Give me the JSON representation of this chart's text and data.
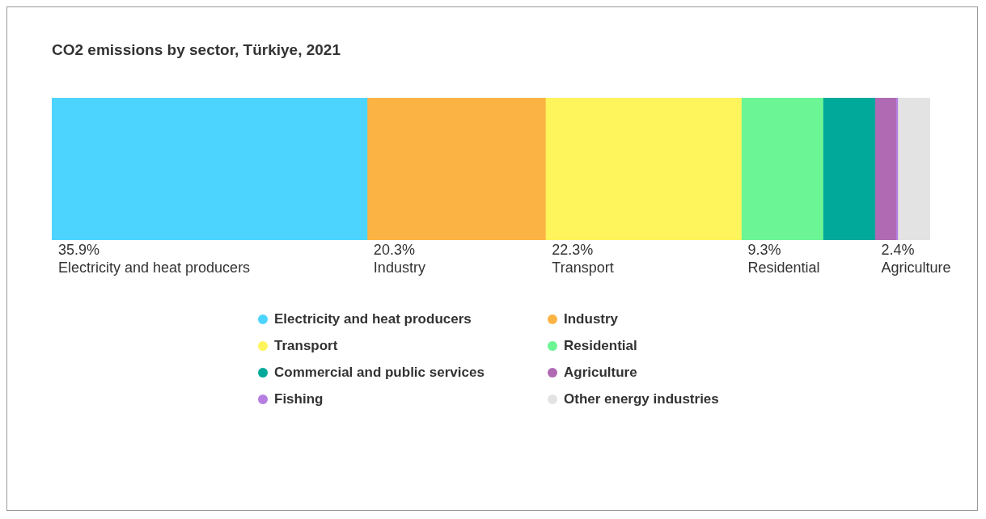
{
  "chart_data": {
    "type": "bar",
    "orientation": "horizontal",
    "stacked": true,
    "title": "CO2 emissions by sector, Türkiye, 2021",
    "categories": [
      null
    ],
    "xlim": [
      0,
      100
    ],
    "tick_labels": false,
    "legend": "bottom",
    "series": [
      {
        "name": "Electricity and heat producers",
        "color": "#4dd4fe",
        "values": [
          35.9
        ],
        "value_labels": [
          "35.9%"
        ]
      },
      {
        "name": "Industry",
        "color": "#fbb444",
        "values": [
          20.3
        ],
        "value_labels": [
          "20.3%"
        ]
      },
      {
        "name": "Transport",
        "color": "#fef45c",
        "values": [
          22.3
        ],
        "value_labels": [
          "22.3%"
        ]
      },
      {
        "name": "Residential",
        "color": "#6bf594",
        "values": [
          9.3
        ],
        "value_labels": [
          "9.3%"
        ]
      },
      {
        "name": "Commercial and public services",
        "color": "#00a99a",
        "values": [
          5.9
        ],
        "value_labels": [
          null
        ]
      },
      {
        "name": "Agriculture",
        "color": "#b06ab4",
        "values": [
          2.4
        ],
        "value_labels": [
          "2.4%"
        ]
      },
      {
        "name": "Fishing",
        "color": "#b57ee0",
        "values": [
          0.2
        ],
        "value_labels": [
          null
        ]
      },
      {
        "name": "Other energy industries",
        "color": "#e3e3e3",
        "values": [
          3.7
        ],
        "value_labels": [
          null
        ]
      }
    ]
  }
}
